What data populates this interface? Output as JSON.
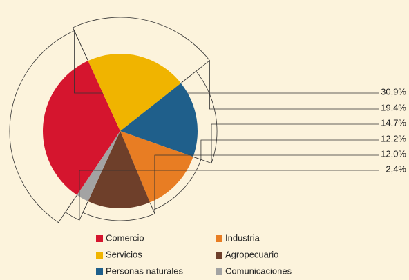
{
  "chart_data": {
    "type": "pie",
    "categories": [
      "Comercio",
      "Servicios",
      "Personas naturales",
      "Industria",
      "Agropecuario",
      "Comunicaciones"
    ],
    "values": [
      30.9,
      19.4,
      14.7,
      12.2,
      12.0,
      2.4
    ],
    "value_labels": [
      "30,9%",
      "19,4%",
      "14,7%",
      "12,2%",
      "12,0%",
      "2,4%"
    ],
    "colors": [
      "#d5152e",
      "#f0b400",
      "#1f5f8b",
      "#e87d23",
      "#6e3f2a",
      "#a3a3a3"
    ]
  }
}
